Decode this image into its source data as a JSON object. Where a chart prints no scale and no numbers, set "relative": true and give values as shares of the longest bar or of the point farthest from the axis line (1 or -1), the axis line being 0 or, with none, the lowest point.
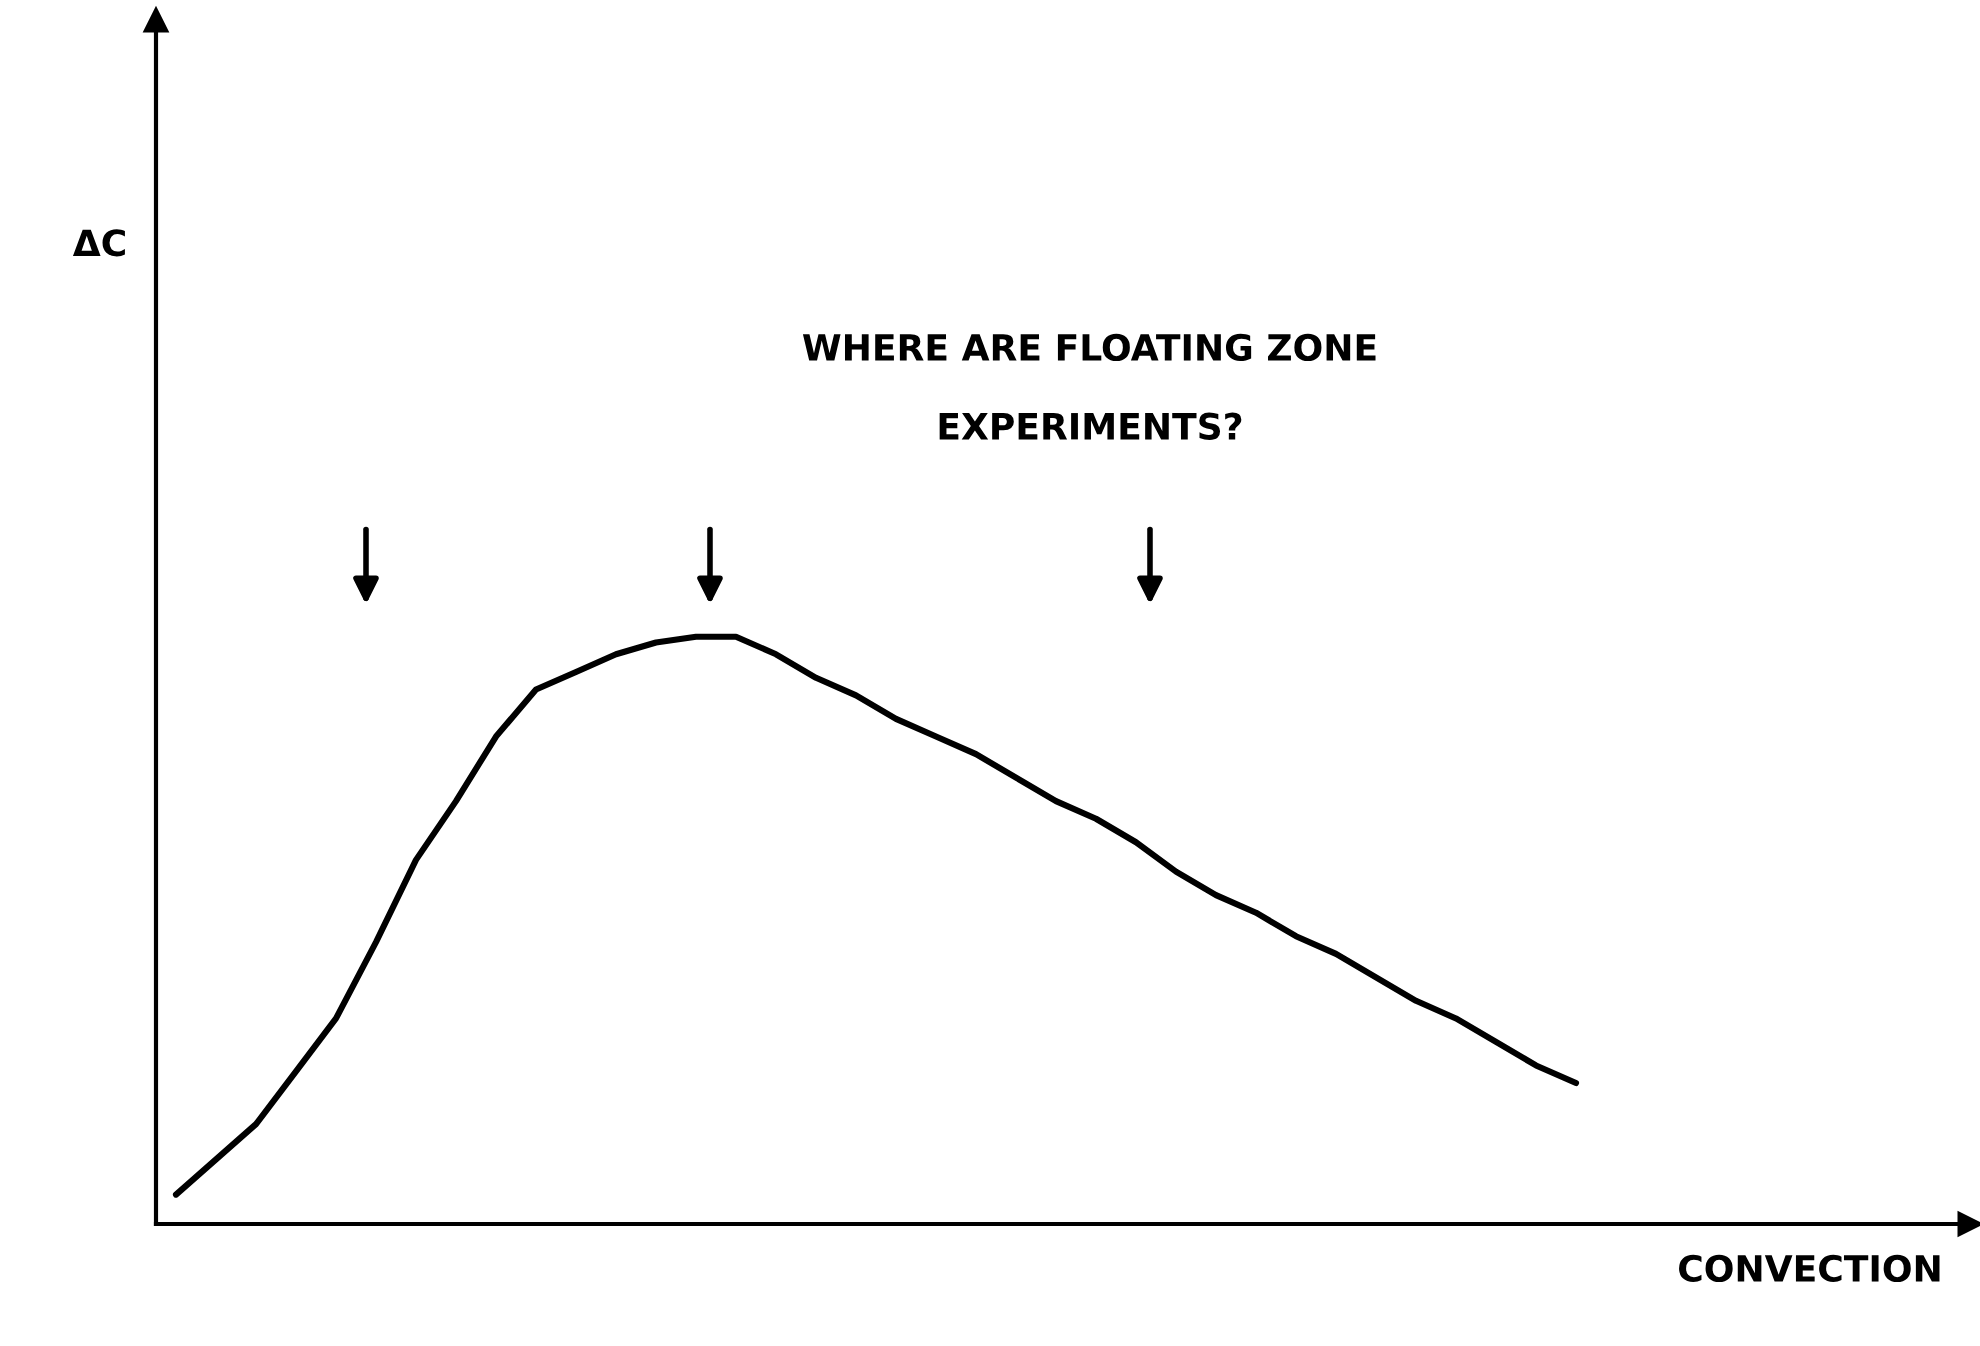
{
  "chart_data": {
    "type": "line",
    "relative": true,
    "xlabel": "CONVECTION",
    "annotations": [
      "ΔC",
      "WHERE ARE FLOATING ZONE\nEXPERIMENTS?"
    ],
    "categories": [
      null,
      null,
      null,
      null,
      null,
      null,
      null,
      null,
      null,
      null,
      null,
      null,
      null,
      null,
      null,
      null,
      null,
      null,
      null,
      null,
      null,
      null,
      null,
      null,
      null,
      null,
      null,
      null,
      null,
      null,
      null,
      null,
      null,
      null,
      null,
      null
    ],
    "series": [
      {
        "color": "#000000",
        "values": [
          0.05,
          0.11,
          0.17,
          0.26,
          0.35,
          0.48,
          0.62,
          0.72,
          0.83,
          0.91,
          0.94,
          0.97,
          0.99,
          1.0,
          1.0,
          0.97,
          0.93,
          0.9,
          0.86,
          0.83,
          0.8,
          0.76,
          0.72,
          0.69,
          0.65,
          0.6,
          0.56,
          0.53,
          0.49,
          0.46,
          0.42,
          0.38,
          0.35,
          0.31,
          0.27,
          0.24
        ]
      }
    ],
    "grid": false,
    "marker": "none",
    "line_style": "solid"
  }
}
